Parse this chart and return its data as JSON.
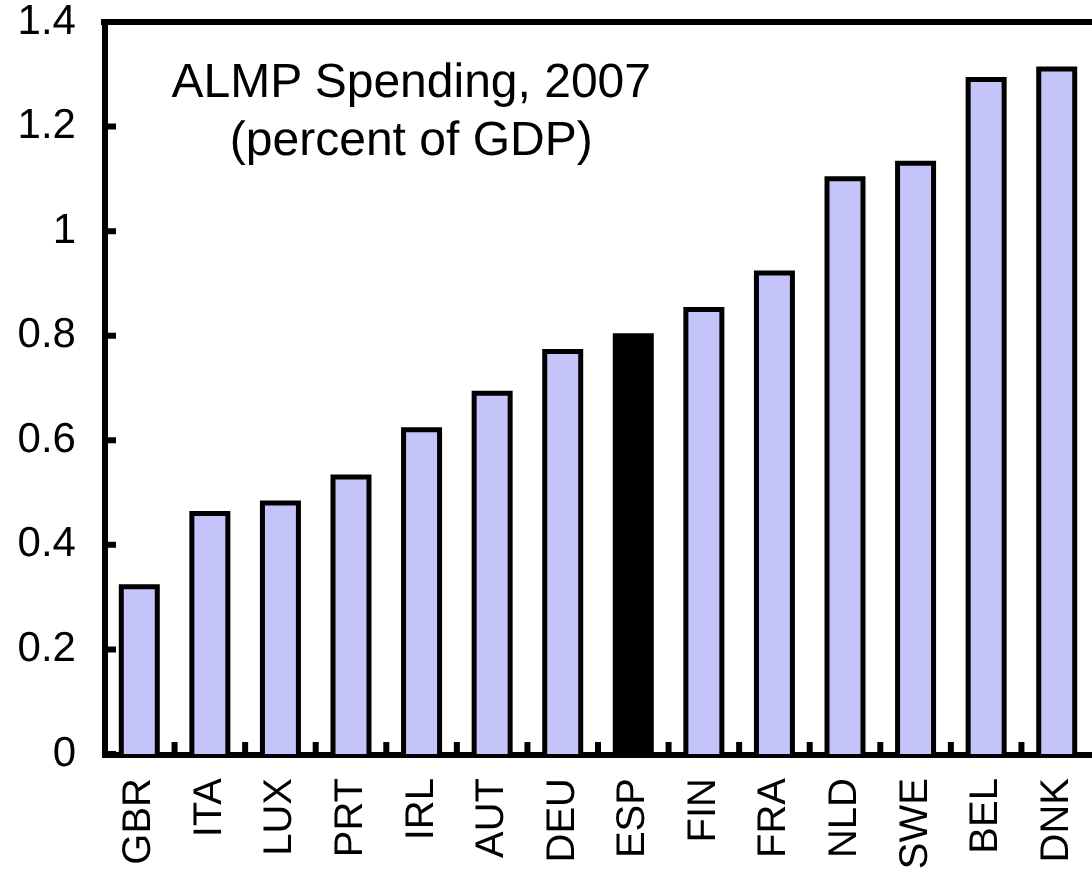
{
  "chart_data": {
    "type": "bar",
    "title": "ALMP Spending, 2007",
    "subtitle": "(percent of GDP)",
    "categories": [
      "GBR",
      "ITA",
      "LUX",
      "PRT",
      "IRL",
      "AUT",
      "DEU",
      "ESP",
      "FIN",
      "FRA",
      "NLD",
      "SWE",
      "BEL",
      "DNK"
    ],
    "values": [
      0.32,
      0.46,
      0.48,
      0.53,
      0.62,
      0.69,
      0.77,
      0.8,
      0.85,
      0.92,
      1.1,
      1.13,
      1.29,
      1.31
    ],
    "colors": [
      "#c4c4fa",
      "#c4c4fa",
      "#c4c4fa",
      "#c4c4fa",
      "#c4c4fa",
      "#c4c4fa",
      "#c4c4fa",
      "#000000",
      "#c4c4fa",
      "#c4c4fa",
      "#c4c4fa",
      "#c4c4fa",
      "#c4c4fa",
      "#c4c4fa"
    ],
    "ylim": [
      0,
      1.4
    ],
    "yticks": [
      0,
      0.2,
      0.4,
      0.6,
      0.8,
      1,
      1.2,
      1.4
    ]
  }
}
